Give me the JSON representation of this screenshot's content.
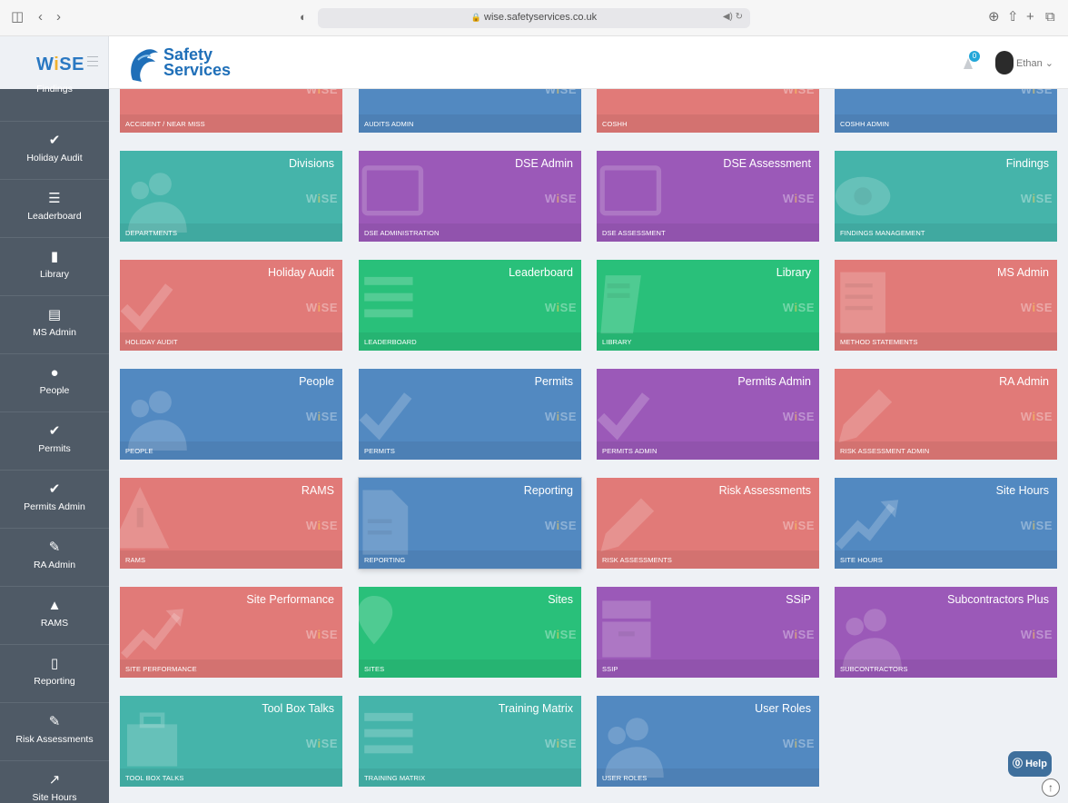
{
  "browser": {
    "url": "wise.safetyservices.co.uk",
    "btn_sidebar": "◫",
    "btn_back": "‹",
    "btn_forward": "›",
    "shield": "◐",
    "lock": "🔒",
    "url_right": "◀) ↻",
    "btn_download": "⊕",
    "btn_share": "⇧",
    "btn_newtab": "+",
    "btn_tabs": "⧉"
  },
  "sidebar": {
    "brand_main": "W",
    "brand_i": "i",
    "brand_rest": "SE",
    "partial_label": "Findings",
    "items": [
      {
        "label": "Holiday Audit",
        "icon": "✔"
      },
      {
        "label": "Leaderboard",
        "icon": "☰"
      },
      {
        "label": "Library",
        "icon": "▮"
      },
      {
        "label": "MS Admin",
        "icon": "▤"
      },
      {
        "label": "People",
        "icon": "●"
      },
      {
        "label": "Permits",
        "icon": "✔"
      },
      {
        "label": "Permits Admin",
        "icon": "✔"
      },
      {
        "label": "RA Admin",
        "icon": "✎"
      },
      {
        "label": "RAMS",
        "icon": "▲"
      },
      {
        "label": "Reporting",
        "icon": "▯"
      },
      {
        "label": "Risk Assessments",
        "icon": "✎"
      },
      {
        "label": "Site Hours",
        "icon": "↗"
      }
    ]
  },
  "header": {
    "logo_line1": "Safety",
    "logo_line2": "Services",
    "notification_count": "0",
    "user_name": "Ethan ⌄"
  },
  "tiles_top_partial": [
    {
      "sub": "ACCIDENT / NEAR MISS",
      "color": "red"
    },
    {
      "sub": "AUDITS ADMIN",
      "color": "blue"
    },
    {
      "sub": "COSHH",
      "color": "red"
    },
    {
      "sub": "COSHH ADMIN",
      "color": "blue"
    }
  ],
  "tiles": [
    {
      "title": "Divisions",
      "sub": "DEPARTMENTS",
      "color": "teal",
      "icon": "people"
    },
    {
      "title": "DSE Admin",
      "sub": "DSE ADMINISTRATION",
      "color": "purple",
      "icon": "screen"
    },
    {
      "title": "DSE Assessment",
      "sub": "DSE ASSESSMENT",
      "color": "purple",
      "icon": "screen"
    },
    {
      "title": "Findings",
      "sub": "FINDINGS MANAGEMENT",
      "color": "teal",
      "icon": "eye"
    },
    {
      "title": "Holiday Audit",
      "sub": "HOLIDAY AUDIT",
      "color": "red",
      "icon": "check"
    },
    {
      "title": "Leaderboard",
      "sub": "LEADERBOARD",
      "color": "green",
      "icon": "list"
    },
    {
      "title": "Library",
      "sub": "LIBRARY",
      "color": "green",
      "icon": "book"
    },
    {
      "title": "MS Admin",
      "sub": "METHOD STATEMENTS",
      "color": "red",
      "icon": "doc"
    },
    {
      "title": "People",
      "sub": "PEOPLE",
      "color": "blue",
      "icon": "people"
    },
    {
      "title": "Permits",
      "sub": "PERMITS",
      "color": "blue",
      "icon": "check"
    },
    {
      "title": "Permits Admin",
      "sub": "PERMITS ADMIN",
      "color": "purple",
      "icon": "check"
    },
    {
      "title": "RA Admin",
      "sub": "RISK ASSESSMENT ADMIN",
      "color": "red",
      "icon": "pencil"
    },
    {
      "title": "RAMS",
      "sub": "RAMS",
      "color": "red",
      "icon": "warning"
    },
    {
      "title": "Reporting",
      "sub": "REPORTING",
      "color": "blue",
      "icon": "file"
    },
    {
      "title": "Risk Assessments",
      "sub": "RISK ASSESSMENTS",
      "color": "red",
      "icon": "pencil"
    },
    {
      "title": "Site Hours",
      "sub": "SITE HOURS",
      "color": "blue",
      "icon": "trend"
    },
    {
      "title": "Site Performance",
      "sub": "SITE PERFORMANCE",
      "color": "red",
      "icon": "trend"
    },
    {
      "title": "Sites",
      "sub": "SITES",
      "color": "green",
      "icon": "pin"
    },
    {
      "title": "SSiP",
      "sub": "SSIP",
      "color": "purple",
      "icon": "archive"
    },
    {
      "title": "Subcontractors Plus",
      "sub": "SUBCONTRACTORS",
      "color": "purple",
      "icon": "people"
    },
    {
      "title": "Tool Box Talks",
      "sub": "TOOL BOX TALKS",
      "color": "teal",
      "icon": "briefcase"
    },
    {
      "title": "Training Matrix",
      "sub": "TRAINING MATRIX",
      "color": "teal",
      "icon": "list"
    },
    {
      "title": "User Roles",
      "sub": "USER ROLES",
      "color": "blue",
      "icon": "people"
    }
  ],
  "watermark": {
    "pre": "W",
    "dot": "i",
    "post": "SE"
  },
  "help": {
    "label": "⓪ Help",
    "scroll_top": "↑"
  }
}
